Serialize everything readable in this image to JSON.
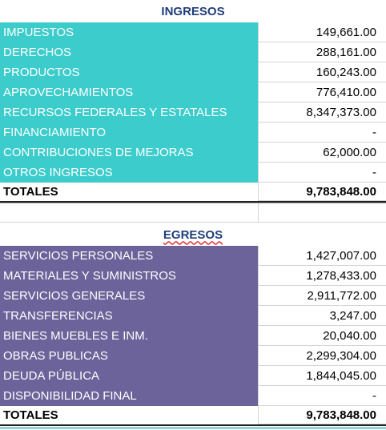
{
  "ingresos": {
    "title": "INGRESOS",
    "rows": [
      [
        "IMPUESTOS",
        "149,661.00"
      ],
      [
        "DERECHOS",
        "288,161.00"
      ],
      [
        "PRODUCTOS",
        "160,243.00"
      ],
      [
        "APROVECHAMIENTOS",
        "776,410.00"
      ],
      [
        "RECURSOS FEDERALES Y ESTATALES",
        "8,347,373.00"
      ],
      [
        "FINANCIAMIENTO",
        "-"
      ],
      [
        "CONTRIBUCIONES DE MEJORAS",
        "62,000.00"
      ],
      [
        "OTROS INGRESOS",
        "-"
      ]
    ],
    "total": [
      "TOTALES",
      "9,783,848.00"
    ]
  },
  "egresos": {
    "title": "EGRESOS",
    "rows": [
      [
        "SERVICIOS PERSONALES",
        "1,427,007.00"
      ],
      [
        "MATERIALES Y SUMINISTROS",
        "1,278,433.00"
      ],
      [
        "SERVICIOS GENERALES",
        "2,911,772.00"
      ],
      [
        "TRANSFERENCIAS",
        "3,247.00"
      ],
      [
        "BIENES MUEBLES E INM.",
        "20,040.00"
      ],
      [
        "OBRAS PUBLICAS",
        "2,299,304.00"
      ],
      [
        "DEUDA PÚBLICA",
        "1,844,045.00"
      ],
      [
        "DISPONIBILIDAD FINAL",
        "-"
      ]
    ],
    "total": [
      "TOTALES",
      "9,783,848.00"
    ]
  }
}
